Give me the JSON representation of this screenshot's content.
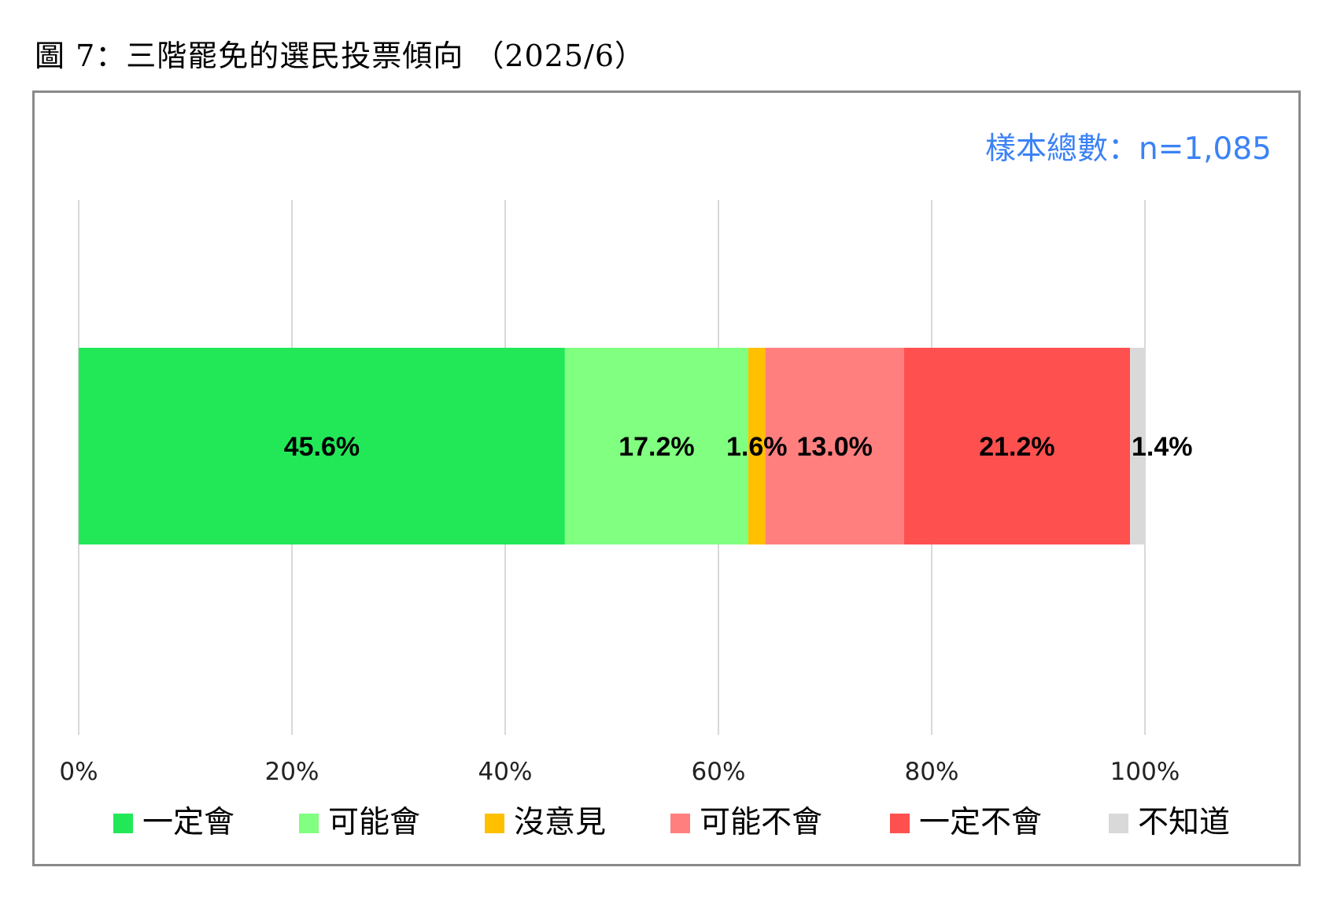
{
  "figure_title": "圖 7：三階罷免的選民投票傾向 （2025/6）",
  "chart_data": {
    "type": "bar",
    "orientation": "horizontal",
    "stacked": true,
    "sample_note": "樣本總數：n=1,085",
    "xlim": [
      0,
      100
    ],
    "x_ticks": [
      0,
      20,
      40,
      60,
      80,
      100
    ],
    "x_tick_labels": [
      "0%",
      "20%",
      "40%",
      "60%",
      "80%",
      "100%"
    ],
    "grid": true,
    "legend_position": "bottom",
    "series": [
      {
        "name": "一定會",
        "value": 45.6,
        "label": "45.6%",
        "color": "#22e858"
      },
      {
        "name": "可能會",
        "value": 17.2,
        "label": "17.2%",
        "color": "#80ff80"
      },
      {
        "name": "沒意見",
        "value": 1.6,
        "label": "1.6%",
        "color": "#ffc000"
      },
      {
        "name": "可能不會",
        "value": 13.0,
        "label": "13.0%",
        "color": "#ff7f7f"
      },
      {
        "name": "一定不會",
        "value": 21.2,
        "label": "21.2%",
        "color": "#ff5050"
      },
      {
        "name": "不知道",
        "value": 1.4,
        "label": "1.4%",
        "color": "#d9d9d9"
      }
    ]
  }
}
